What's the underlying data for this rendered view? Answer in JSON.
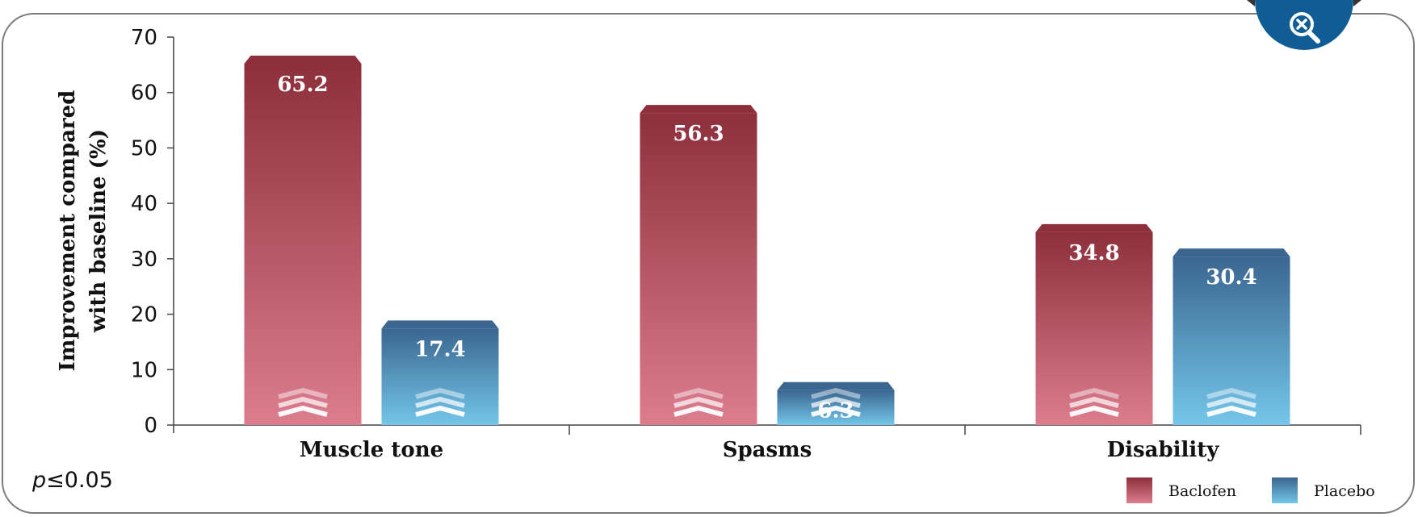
{
  "chart_data": {
    "type": "bar",
    "categories": [
      "Muscle tone",
      "Spasms",
      "Disability"
    ],
    "series": [
      {
        "name": "Baclofen",
        "values": [
          65.2,
          56.3,
          34.8
        ]
      },
      {
        "name": "Placebo",
        "values": [
          17.4,
          6.3,
          30.4
        ]
      }
    ],
    "ylabel": "Improvement compared with baseline (%)",
    "ylabel_lines": [
      "Improvement compared",
      "with baseline (%)"
    ],
    "yticks": [
      "0",
      "10",
      "20",
      "30",
      "40",
      "50",
      "60",
      "70"
    ],
    "ylim": [
      0,
      70
    ],
    "grid": false,
    "legend_position": "bottom-right",
    "annotation": "p≤0.05"
  },
  "colors": {
    "baclofen_top": "#8e2f3c",
    "baclofen_bottom": "#dc7d8e",
    "placebo_top": "#3a6690",
    "placebo_bottom": "#74c6ea",
    "zoom_button": "#0f5d94"
  },
  "zoom_icon": "zoom-out-magnifier-icon"
}
